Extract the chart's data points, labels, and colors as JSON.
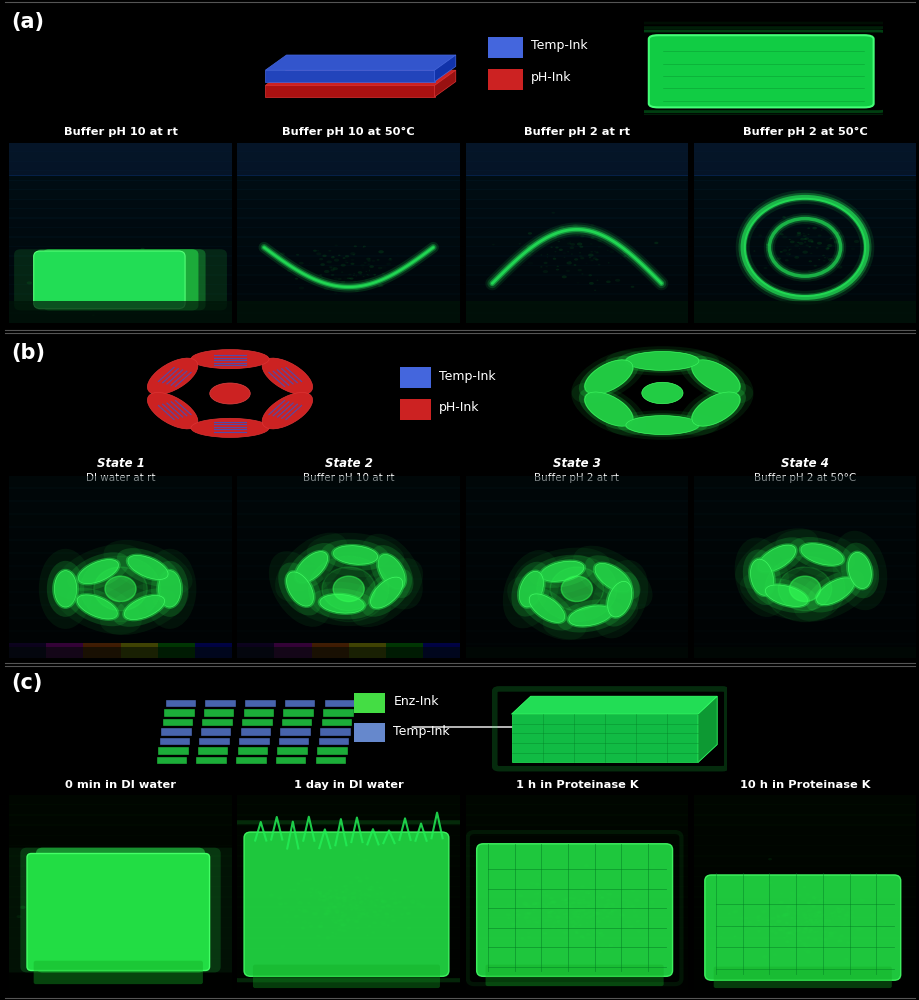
{
  "fig_width": 9.2,
  "fig_height": 10.0,
  "background_color": "#000000",
  "panel_label_fontsize": 15,
  "panel_a": {
    "label": "(a)",
    "bottom_labels": [
      "Buffer pH 10 at rt",
      "Buffer pH 10 at 50°C",
      "Buffer pH 2 at rt",
      "Buffer pH 2 at 50°C"
    ],
    "legend_items": [
      {
        "color": "#4466dd",
        "text": "Temp-Ink"
      },
      {
        "color": "#cc2222",
        "text": "pH-Ink"
      }
    ]
  },
  "panel_b": {
    "label": "(b)",
    "legend_items": [
      {
        "color": "#4466dd",
        "text": "Temp-Ink"
      },
      {
        "color": "#cc2222",
        "text": "pH-Ink"
      }
    ],
    "state_labels": [
      {
        "bold": "State 1",
        "sub": "DI water at rt"
      },
      {
        "bold": "State 2",
        "sub": "Buffer pH 10 at rt"
      },
      {
        "bold": "State 3",
        "sub": "Buffer pH 2 at rt"
      },
      {
        "bold": "State 4",
        "sub": "Buffer pH 2 at 50°C"
      }
    ]
  },
  "panel_c": {
    "label": "(c)",
    "legend_items": [
      {
        "color": "#44dd44",
        "text": "Enz-Ink"
      },
      {
        "color": "#6688cc",
        "text": "Temp-Ink"
      }
    ],
    "bottom_labels": [
      "0 min in DI water",
      "1 day in DI water",
      "1 h in Proteinase K",
      "10 h in Proteinase K"
    ]
  }
}
